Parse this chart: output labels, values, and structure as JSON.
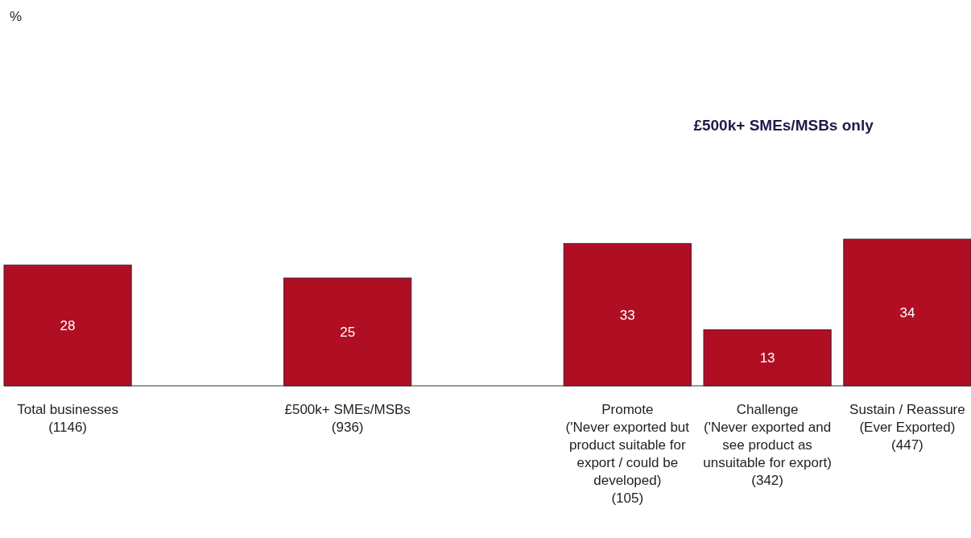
{
  "chart_data": {
    "type": "bar",
    "categories": [
      "Total businesses (1146)",
      null,
      "£500k+ SMEs/MSBs (936)",
      null,
      "Promote ('Never exported but product suitable for export / could be developed) (105)",
      "Challenge ('Never exported and see product as unsuitable for export) (342)",
      "Sustain / Reassure (Ever Exported) (447)"
    ],
    "values": [
      28,
      null,
      25,
      null,
      33,
      13,
      34
    ],
    "color": "#b00f23",
    "data_labels": true,
    "annotations": [
      "%",
      "£500k+ SMEs/MSBs only"
    ]
  }
}
